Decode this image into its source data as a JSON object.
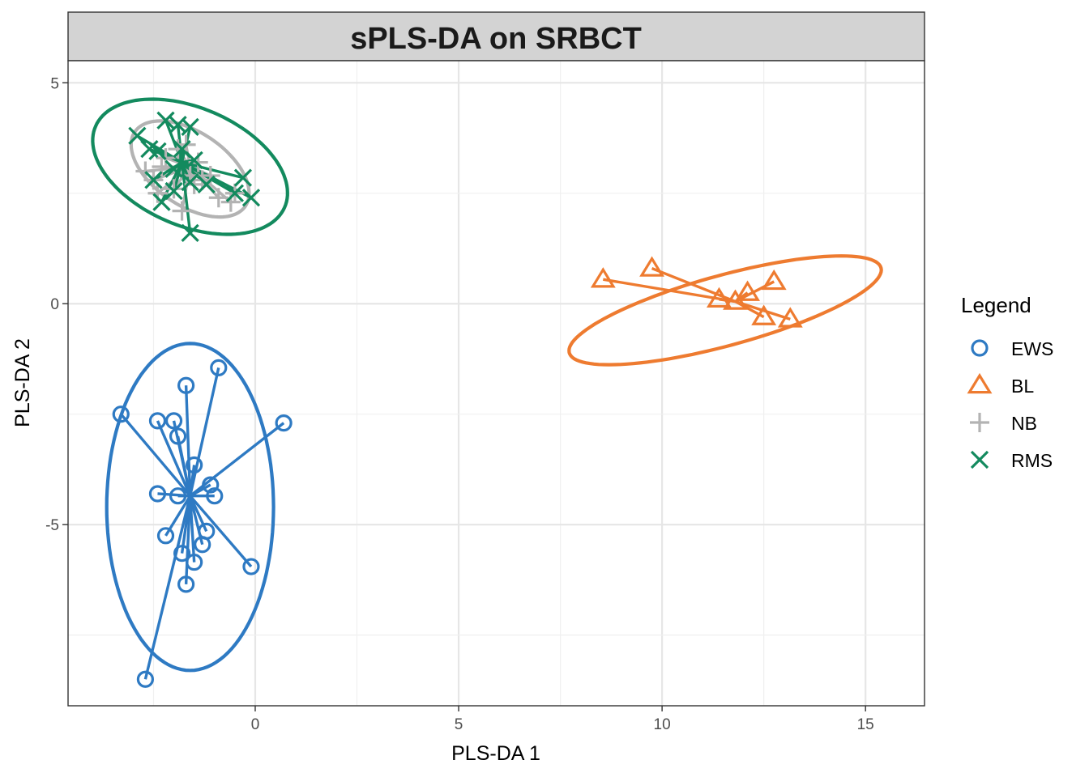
{
  "chart_data": {
    "type": "scatter",
    "title": "sPLS-DA on SRBCT",
    "xlabel": "PLS-DA 1",
    "ylabel": "PLS-DA 2",
    "xlim": [
      -4.6,
      16.45
    ],
    "ylim": [
      -9.1,
      5.5
    ],
    "x_ticks": [
      0,
      5,
      10,
      15
    ],
    "y_ticks": [
      5,
      0,
      -5
    ],
    "grid": true,
    "legend": {
      "title": "Legend",
      "position": "right"
    },
    "series": [
      {
        "name": "EWS",
        "color": "#2e7ac3",
        "marker": "circle",
        "centroid": [
          -1.6,
          -4.35
        ],
        "ellipse": {
          "center": [
            -1.6,
            -4.6
          ],
          "rx": 2.05,
          "ry": 3.7,
          "angle": 0
        },
        "x": [
          -3.3,
          -2.4,
          -2.0,
          -1.7,
          -0.9,
          0.7,
          -1.9,
          -1.5,
          -2.4,
          -1.9,
          -1.1,
          -1.0,
          -2.2,
          -1.2,
          -1.8,
          -1.5,
          -1.3,
          -1.7,
          -0.1,
          -2.7
        ],
        "y": [
          -2.5,
          -2.65,
          -2.65,
          -1.85,
          -1.45,
          -2.7,
          -3.0,
          -3.65,
          -4.3,
          -4.35,
          -4.1,
          -4.35,
          -5.25,
          -5.15,
          -5.65,
          -5.85,
          -5.45,
          -6.35,
          -5.95,
          -8.5
        ]
      },
      {
        "name": "BL",
        "color": "#ee7b30",
        "marker": "triangle",
        "centroid": [
          11.8,
          0.05
        ],
        "ellipse": {
          "center": [
            11.55,
            -0.15
          ],
          "rx": 3.95,
          "ry": 0.8,
          "angle": 14
        },
        "x": [
          8.55,
          9.75,
          11.4,
          11.8,
          12.1,
          12.75,
          12.5,
          13.15
        ],
        "y": [
          0.55,
          0.8,
          0.1,
          0.05,
          0.25,
          0.5,
          -0.3,
          -0.35
        ]
      },
      {
        "name": "NB",
        "color": "#b3b3b3",
        "marker": "plus",
        "centroid": [
          -1.6,
          3.1
        ],
        "ellipse": {
          "center": [
            -1.6,
            3.05
          ],
          "rx": 1.6,
          "ry": 0.85,
          "angle": -30
        },
        "x": [
          -2.7,
          -2.5,
          -2.2,
          -1.9,
          -1.7,
          -1.4,
          -1.1,
          -1.5,
          -2.0,
          -2.4,
          -1.3,
          -0.9,
          -0.6,
          -1.8,
          -2.3,
          -1.6,
          -0.5
        ],
        "y": [
          3.0,
          2.8,
          3.3,
          3.5,
          3.6,
          3.2,
          2.9,
          2.7,
          2.6,
          2.5,
          2.8,
          2.4,
          2.3,
          2.1,
          3.1,
          2.9,
          2.5
        ]
      },
      {
        "name": "RMS",
        "color": "#138a5e",
        "marker": "x",
        "centroid": [
          -1.8,
          3.2
        ],
        "ellipse": {
          "center": [
            -1.6,
            3.1
          ],
          "rx": 2.5,
          "ry": 1.35,
          "angle": -20
        },
        "x": [
          -2.9,
          -2.6,
          -2.2,
          -1.9,
          -1.6,
          -1.8,
          -2.4,
          -2.0,
          -1.5,
          -2.5,
          -1.2,
          -0.3,
          -0.5,
          -0.1,
          -1.6,
          -2.3,
          -2.0,
          -1.6
        ],
        "y": [
          3.8,
          3.5,
          4.15,
          4.05,
          4.0,
          3.5,
          3.45,
          3.05,
          3.25,
          2.8,
          2.7,
          2.85,
          2.5,
          2.4,
          1.6,
          2.3,
          2.55,
          2.75
        ]
      }
    ]
  }
}
